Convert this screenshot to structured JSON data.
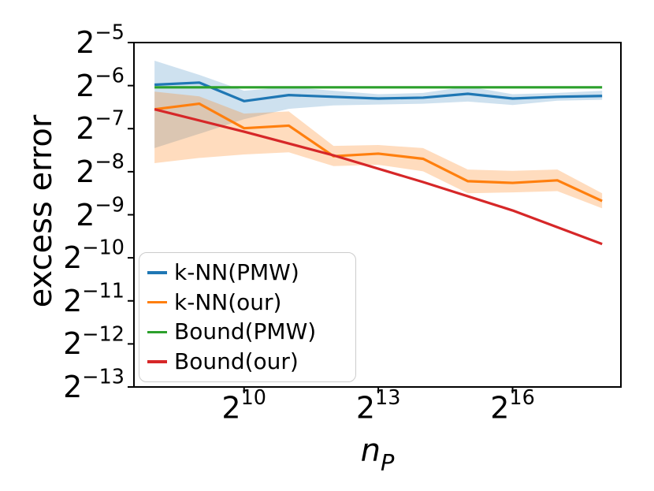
{
  "chart_data": {
    "type": "line",
    "title": "",
    "ylabel": "excess error",
    "xlabel_base": "n",
    "xlabel_sub": "P",
    "x_scale": "log2",
    "y_scale": "log2",
    "x_range_log2": [
      7.54,
      18.42
    ],
    "y_range_log2": [
      -13,
      -5
    ],
    "grid": false,
    "legend_position": "lower-left",
    "x_ticks": [
      {
        "exp": 10,
        "base": "2",
        "sup": "10"
      },
      {
        "exp": 13,
        "base": "2",
        "sup": "13"
      },
      {
        "exp": 16,
        "base": "2",
        "sup": "16"
      }
    ],
    "y_ticks": [
      {
        "exp": -5,
        "base": "2",
        "sup": "−5"
      },
      {
        "exp": -6,
        "base": "2",
        "sup": "−6"
      },
      {
        "exp": -7,
        "base": "2",
        "sup": "−7"
      },
      {
        "exp": -8,
        "base": "2",
        "sup": "−8"
      },
      {
        "exp": -9,
        "base": "2",
        "sup": "−9"
      },
      {
        "exp": -10,
        "base": "2",
        "sup": "−10"
      },
      {
        "exp": -11,
        "base": "2",
        "sup": "−11"
      },
      {
        "exp": -12,
        "base": "2",
        "sup": "−12"
      },
      {
        "exp": -13,
        "base": "2",
        "sup": "−13"
      }
    ],
    "x_log2": [
      8,
      9,
      10,
      11,
      12,
      13,
      14,
      15,
      16,
      17,
      18
    ],
    "series": [
      {
        "name": "knn-pmw",
        "label": "k-NN(PMW)",
        "color": "#1f77b4",
        "values_log2": [
          -5.98,
          -5.93,
          -6.36,
          -6.22,
          -6.26,
          -6.3,
          -6.28,
          -6.19,
          -6.3,
          -6.26,
          -6.24
        ],
        "band_top_log2": [
          -5.42,
          -5.75,
          -6.12,
          -6.03,
          -6.12,
          -6.2,
          -6.17,
          -6.02,
          -6.2,
          -6.17,
          -6.12
        ],
        "band_bottom_log2": [
          -7.45,
          -7.12,
          -6.78,
          -6.54,
          -6.46,
          -6.44,
          -6.42,
          -6.37,
          -6.45,
          -6.35,
          -6.33
        ]
      },
      {
        "name": "knn-our",
        "label": "k-NN(our)",
        "color": "#ff7f0e",
        "values_log2": [
          -6.55,
          -6.42,
          -6.99,
          -6.93,
          -7.64,
          -7.58,
          -7.7,
          -8.22,
          -8.26,
          -8.2,
          -8.68
        ],
        "band_top_log2": [
          -6.14,
          -6.25,
          -6.65,
          -6.6,
          -7.4,
          -7.38,
          -7.45,
          -7.95,
          -7.98,
          -7.95,
          -8.5
        ],
        "band_bottom_log2": [
          -7.8,
          -7.68,
          -7.6,
          -7.55,
          -7.87,
          -7.84,
          -7.99,
          -8.5,
          -8.48,
          -8.45,
          -8.85
        ]
      },
      {
        "name": "bound-pmw",
        "label": "Bound(PMW)",
        "color": "#2ca02c",
        "x_log2": [
          8,
          18
        ],
        "values_log2": [
          -6.04,
          -6.04
        ]
      },
      {
        "name": "bound-our",
        "label": "Bound(our)",
        "color": "#d62728",
        "x_log2": [
          8,
          10,
          12,
          14,
          16,
          18
        ],
        "values_log2": [
          -6.55,
          -7.07,
          -7.62,
          -8.24,
          -8.9,
          -9.68
        ]
      }
    ]
  }
}
